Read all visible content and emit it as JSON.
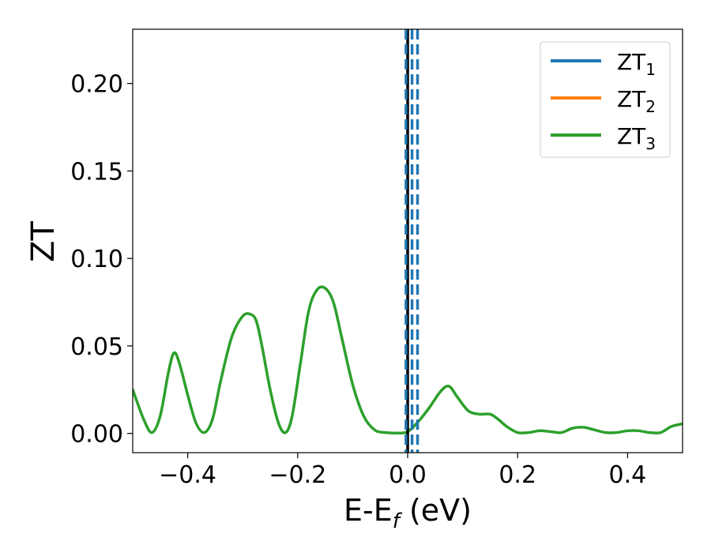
{
  "chart_data": {
    "type": "line",
    "xlabel": {
      "main": "E-E",
      "sub": "f",
      "units": " (eV)"
    },
    "ylabel": "ZT",
    "xlim": [
      -0.5,
      0.5
    ],
    "ylim": [
      -0.011,
      0.231
    ],
    "xticks": [
      -0.4,
      -0.2,
      0.0,
      0.2,
      0.4
    ],
    "xtick_labels": [
      "−0.4",
      "−0.2",
      "0.0",
      "0.2",
      "0.4"
    ],
    "yticks": [
      0.0,
      0.05,
      0.1,
      0.15,
      0.2
    ],
    "ytick_labels": [
      "0.00",
      "0.05",
      "0.10",
      "0.15",
      "0.20"
    ],
    "grid": false,
    "legend_position": "top-right",
    "series": [
      {
        "name": "ZT",
        "sub": "1",
        "color": "#1f77b4",
        "x": [],
        "y": []
      },
      {
        "name": "ZT",
        "sub": "2",
        "color": "#ff7f0e",
        "x": [],
        "y": []
      },
      {
        "name": "ZT",
        "sub": "3",
        "color": "#2ca02c",
        "x": [
          -0.5,
          -0.48,
          -0.465,
          -0.45,
          -0.435,
          -0.425,
          -0.415,
          -0.4,
          -0.385,
          -0.37,
          -0.355,
          -0.34,
          -0.32,
          -0.3,
          -0.285,
          -0.275,
          -0.265,
          -0.25,
          -0.235,
          -0.222,
          -0.21,
          -0.195,
          -0.18,
          -0.165,
          -0.15,
          -0.135,
          -0.12,
          -0.1,
          -0.08,
          -0.06,
          -0.04,
          -0.02,
          0.0,
          0.02,
          0.04,
          0.06,
          0.075,
          0.09,
          0.11,
          0.13,
          0.15,
          0.165,
          0.18,
          0.2,
          0.22,
          0.24,
          0.26,
          0.28,
          0.3,
          0.32,
          0.34,
          0.36,
          0.38,
          0.4,
          0.42,
          0.44,
          0.46,
          0.48,
          0.5
        ],
        "y": [
          0.025,
          0.008,
          0.0005,
          0.01,
          0.035,
          0.046,
          0.04,
          0.022,
          0.006,
          0.0005,
          0.008,
          0.03,
          0.055,
          0.067,
          0.068,
          0.064,
          0.05,
          0.025,
          0.006,
          0.0005,
          0.01,
          0.04,
          0.07,
          0.082,
          0.083,
          0.075,
          0.055,
          0.028,
          0.01,
          0.002,
          0.0005,
          0.0002,
          0.001,
          0.007,
          0.015,
          0.024,
          0.027,
          0.021,
          0.013,
          0.011,
          0.011,
          0.008,
          0.004,
          0.0005,
          0.0005,
          0.0015,
          0.001,
          0.0005,
          0.003,
          0.0035,
          0.002,
          0.0005,
          0.0005,
          0.0015,
          0.0015,
          0.0005,
          0.0005,
          0.004,
          0.0055
        ]
      }
    ],
    "vlines": [
      {
        "x": 0.0,
        "color": "#000000",
        "style": "solid"
      },
      {
        "x": -0.003,
        "color": "#1f77b4",
        "style": "dashed"
      },
      {
        "x": 0.008,
        "color": "#1f77b4",
        "style": "dashed"
      },
      {
        "x": 0.018,
        "color": "#1f77b4",
        "style": "dashed"
      }
    ]
  }
}
